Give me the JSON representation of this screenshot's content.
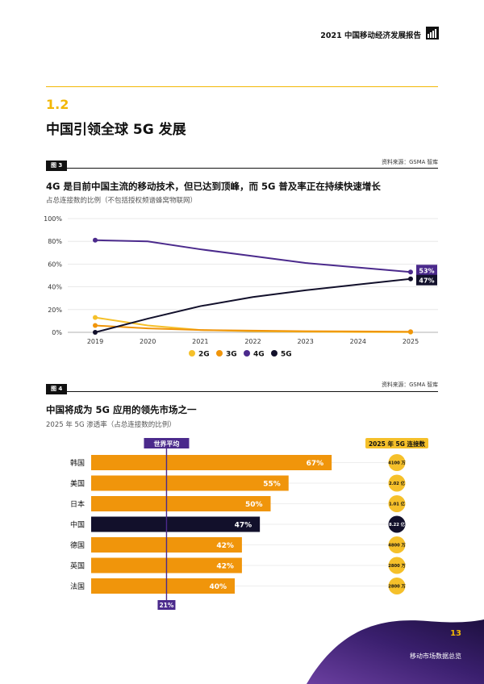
{
  "header": {
    "report_title": "2021 中国移动经济发展报告"
  },
  "section": {
    "number": "1.2",
    "title": "中国引领全球 5G 发展"
  },
  "colors": {
    "accent": "#f2b705",
    "g2": "#f5c02a",
    "g3": "#f0950b",
    "g4": "#4b2a8c",
    "g5": "#12102b",
    "bar": "#f0950b",
    "bar_china": "#12102b"
  },
  "figure3": {
    "tag": "图 3",
    "source": "资料来源：GSMA 智库",
    "title": "4G 是目前中国主流的移动技术，但已达到顶峰，而 5G 普及率正在持续快速增长",
    "subtitle": "占总连接数的比例（不包括授权频谱蜂窝物联网）"
  },
  "figure4": {
    "tag": "图 4",
    "source": "资料来源：GSMA 智库",
    "title": "中国将成为 5G 应用的领先市场之一",
    "subtitle": "2025 年 5G 渗透率（占总连接数的比例）",
    "avg_label": "世界平均",
    "connections_header": "2025 年 5G 连接数"
  },
  "chart_data": [
    {
      "type": "line",
      "x": [
        2019,
        2020,
        2021,
        2022,
        2023,
        2024,
        2025
      ],
      "x_ticks": [
        "2019",
        "2020",
        "2021",
        "2022",
        "2023",
        "2024",
        "2025"
      ],
      "y_ticks": [
        "0%",
        "20%",
        "40%",
        "60%",
        "80%",
        "100%"
      ],
      "ylim": [
        0,
        100
      ],
      "grid": true,
      "legend_position": "bottom",
      "series": [
        {
          "name": "2G",
          "color": "#f5c02a",
          "values": [
            13,
            6,
            2,
            1,
            0.5,
            0.3,
            0.2
          ]
        },
        {
          "name": "3G",
          "color": "#f0950b",
          "values": [
            6,
            3.5,
            2,
            1.5,
            1,
            0.8,
            0.5
          ]
        },
        {
          "name": "4G",
          "color": "#4b2a8c",
          "values": [
            81,
            80,
            73,
            67,
            61,
            57,
            53
          ]
        },
        {
          "name": "5G",
          "color": "#12102b",
          "values": [
            0,
            12,
            23,
            31,
            37,
            42,
            47
          ]
        }
      ],
      "end_labels": [
        {
          "series": "4G",
          "text": "53%"
        },
        {
          "series": "5G",
          "text": "47%"
        }
      ]
    },
    {
      "type": "bar",
      "orientation": "horizontal",
      "categories": [
        "韩国",
        "美国",
        "日本",
        "中国",
        "德国",
        "英国",
        "法国"
      ],
      "values": [
        67,
        55,
        50,
        47,
        42,
        42,
        40
      ],
      "value_labels": [
        "67%",
        "55%",
        "50%",
        "47%",
        "42%",
        "42%",
        "40%"
      ],
      "xlim": [
        0,
        100
      ],
      "highlight": "中国",
      "world_average": 21,
      "world_average_label": "21%",
      "connections": [
        "4100 万",
        "2.02 亿",
        "1.01 亿",
        "8.22 亿",
        "4800 万",
        "2800 万",
        "2800 万"
      ]
    }
  ],
  "footer": {
    "page_number": "13",
    "section_label": "移动市场数据总览"
  }
}
